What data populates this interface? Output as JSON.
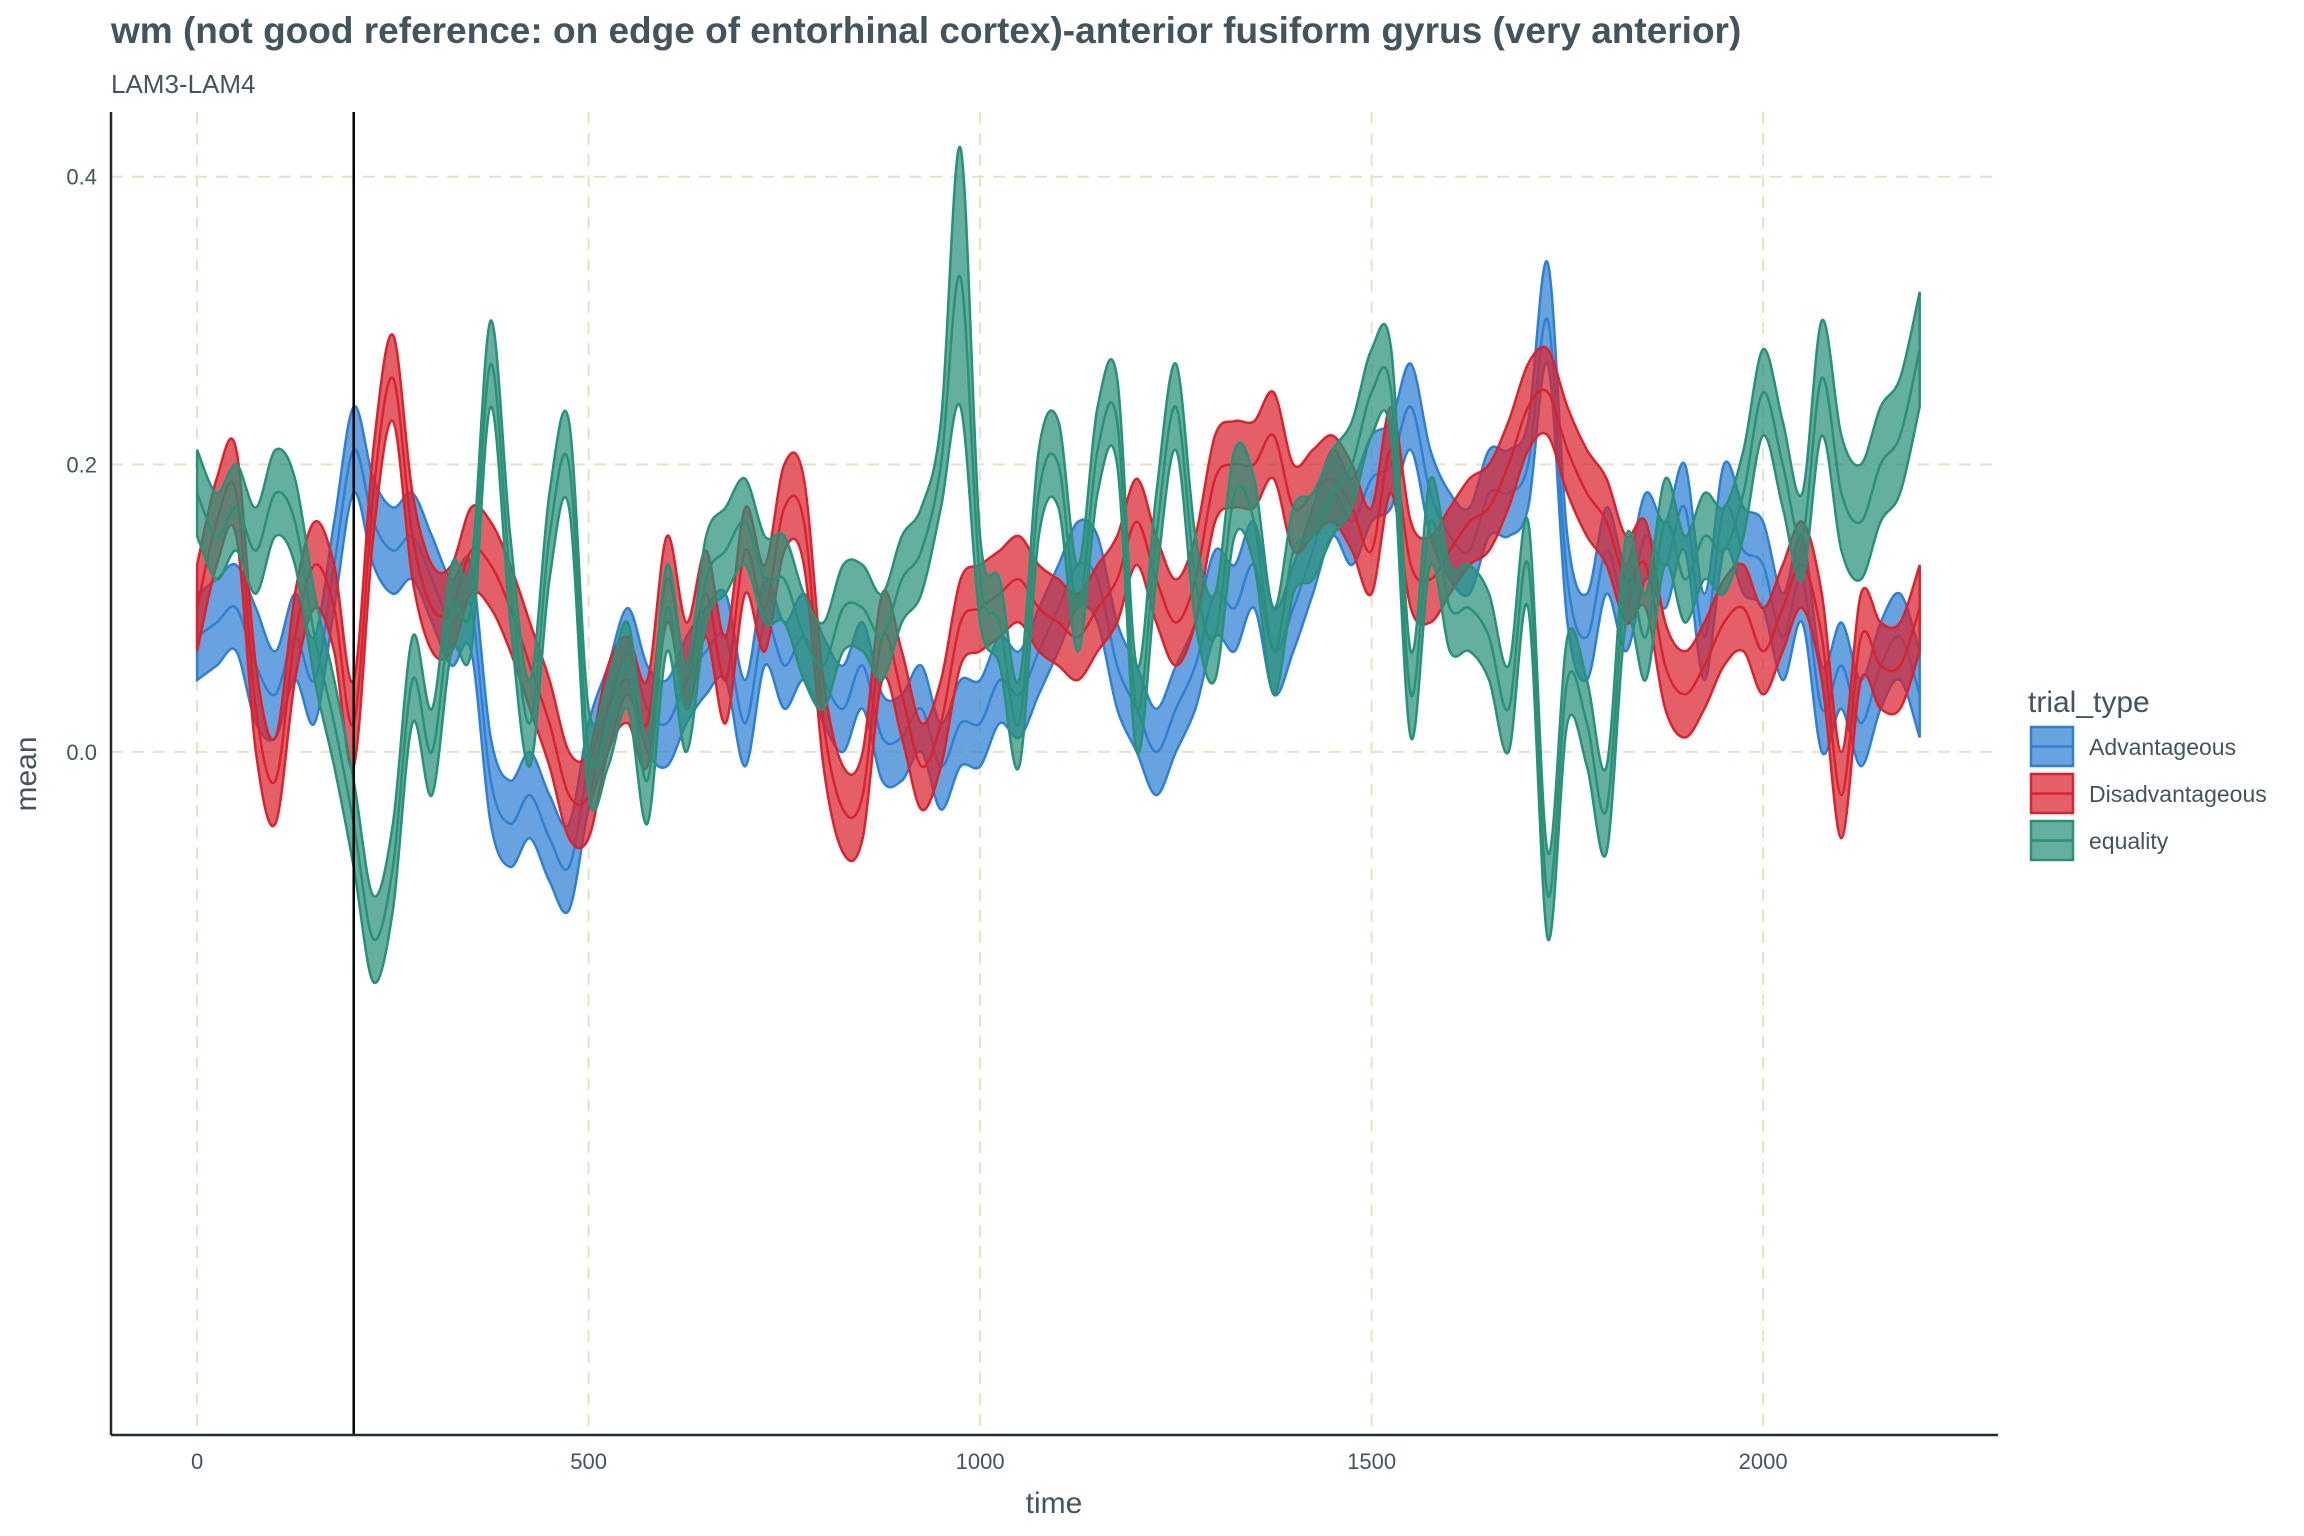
{
  "chart_data": {
    "type": "area",
    "title": "wm (not good reference: on edge of entorhinal cortex)-anterior fusiform gyrus (very anterior)",
    "subtitle": "LAM3-LAM4",
    "xlabel": "time",
    "ylabel": "mean",
    "xlim": [
      -110,
      2300
    ],
    "ylim": [
      -0.475,
      0.445
    ],
    "x_ticks": [
      0,
      500,
      1000,
      1500,
      2000
    ],
    "y_ticks": [
      0.0,
      0.2,
      0.4
    ],
    "x_tick_labels": [
      "0",
      "500",
      "1000",
      "1500",
      "2000"
    ],
    "y_tick_labels": [
      "0.0",
      "0.2",
      "0.4"
    ],
    "reference_line_x": 200,
    "grid": true,
    "legend": {
      "title": "trial_type",
      "position": "right"
    },
    "series": [
      {
        "name": "Advantageous",
        "color": "#2f7fd2",
        "x": [
          0,
          25,
          50,
          75,
          100,
          125,
          150,
          175,
          200,
          225,
          250,
          275,
          300,
          325,
          350,
          375,
          400,
          425,
          450,
          475,
          500,
          525,
          550,
          575,
          600,
          625,
          650,
          675,
          700,
          725,
          750,
          775,
          800,
          825,
          850,
          875,
          900,
          925,
          950,
          975,
          1000,
          1025,
          1050,
          1075,
          1100,
          1125,
          1150,
          1175,
          1200,
          1225,
          1250,
          1275,
          1300,
          1325,
          1350,
          1375,
          1400,
          1425,
          1450,
          1475,
          1500,
          1525,
          1550,
          1575,
          1600,
          1625,
          1650,
          1675,
          1700,
          1725,
          1750,
          1775,
          1800,
          1825,
          1850,
          1875,
          1900,
          1925,
          1950,
          1975,
          2000,
          2025,
          2050,
          2075,
          2100,
          2125,
          2150,
          2175,
          2200
        ],
        "mean": [
          0.08,
          0.09,
          0.1,
          0.06,
          0.04,
          0.08,
          0.05,
          0.13,
          0.21,
          0.16,
          0.14,
          0.15,
          0.12,
          0.09,
          0.1,
          -0.02,
          -0.05,
          -0.03,
          -0.06,
          -0.08,
          -0.01,
          0.03,
          0.07,
          0.03,
          0.02,
          0.05,
          0.07,
          0.08,
          0.02,
          0.09,
          0.06,
          0.08,
          0.05,
          0.03,
          0.06,
          0.01,
          0.01,
          0.03,
          -0.01,
          0.02,
          0.02,
          0.05,
          0.04,
          0.07,
          0.1,
          0.13,
          0.12,
          0.06,
          0.03,
          0.0,
          0.03,
          0.06,
          0.11,
          0.1,
          0.13,
          0.07,
          0.1,
          0.14,
          0.18,
          0.16,
          0.19,
          0.2,
          0.24,
          0.18,
          0.15,
          0.14,
          0.18,
          0.18,
          0.2,
          0.3,
          0.12,
          0.08,
          0.14,
          0.1,
          0.15,
          0.13,
          0.17,
          0.08,
          0.17,
          0.14,
          0.13,
          0.08,
          0.12,
          0.03,
          0.06,
          0.02,
          0.06,
          0.08,
          0.04
        ],
        "lower": [
          0.05,
          0.06,
          0.07,
          0.02,
          0.01,
          0.05,
          0.02,
          0.1,
          0.18,
          0.13,
          0.11,
          0.12,
          0.09,
          0.06,
          0.07,
          -0.05,
          -0.08,
          -0.06,
          -0.09,
          -0.11,
          -0.04,
          0.0,
          0.04,
          0.0,
          -0.01,
          0.02,
          0.04,
          0.05,
          -0.01,
          0.06,
          0.03,
          0.05,
          0.02,
          0.0,
          0.03,
          -0.02,
          -0.02,
          0.0,
          -0.04,
          -0.01,
          -0.01,
          0.02,
          0.01,
          0.04,
          0.07,
          0.1,
          0.09,
          0.03,
          0.0,
          -0.03,
          0.0,
          0.03,
          0.08,
          0.07,
          0.1,
          0.04,
          0.07,
          0.11,
          0.15,
          0.13,
          0.16,
          0.17,
          0.21,
          0.15,
          0.12,
          0.11,
          0.15,
          0.15,
          0.17,
          0.27,
          0.09,
          0.05,
          0.11,
          0.07,
          0.12,
          0.1,
          0.14,
          0.05,
          0.14,
          0.11,
          0.1,
          0.05,
          0.09,
          0.0,
          0.03,
          -0.01,
          0.03,
          0.05,
          0.01
        ],
        "upper": [
          0.11,
          0.12,
          0.13,
          0.1,
          0.07,
          0.11,
          0.08,
          0.16,
          0.24,
          0.19,
          0.17,
          0.18,
          0.15,
          0.12,
          0.13,
          0.01,
          -0.02,
          0.0,
          -0.03,
          -0.05,
          0.02,
          0.06,
          0.1,
          0.06,
          0.05,
          0.08,
          0.1,
          0.11,
          0.05,
          0.12,
          0.09,
          0.11,
          0.08,
          0.06,
          0.09,
          0.04,
          0.04,
          0.06,
          0.02,
          0.05,
          0.05,
          0.08,
          0.07,
          0.1,
          0.13,
          0.16,
          0.15,
          0.09,
          0.06,
          0.03,
          0.06,
          0.09,
          0.14,
          0.13,
          0.16,
          0.1,
          0.13,
          0.17,
          0.21,
          0.19,
          0.22,
          0.23,
          0.27,
          0.21,
          0.18,
          0.17,
          0.21,
          0.21,
          0.23,
          0.34,
          0.15,
          0.11,
          0.17,
          0.13,
          0.18,
          0.16,
          0.2,
          0.11,
          0.2,
          0.17,
          0.16,
          0.11,
          0.15,
          0.06,
          0.09,
          0.05,
          0.09,
          0.11,
          0.07
        ]
      },
      {
        "name": "Disadvantageous",
        "color": "#d9232e",
        "x": [
          0,
          25,
          50,
          75,
          100,
          125,
          150,
          175,
          200,
          225,
          250,
          275,
          300,
          325,
          350,
          375,
          400,
          425,
          450,
          475,
          500,
          525,
          550,
          575,
          600,
          625,
          650,
          675,
          700,
          725,
          750,
          775,
          800,
          825,
          850,
          875,
          900,
          925,
          950,
          975,
          1000,
          1025,
          1050,
          1075,
          1100,
          1125,
          1150,
          1175,
          1200,
          1225,
          1250,
          1275,
          1300,
          1325,
          1350,
          1375,
          1400,
          1425,
          1450,
          1475,
          1500,
          1525,
          1550,
          1575,
          1600,
          1625,
          1650,
          1675,
          1700,
          1725,
          1750,
          1775,
          1800,
          1825,
          1850,
          1875,
          1900,
          1925,
          1950,
          1975,
          2000,
          2025,
          2050,
          2075,
          2100,
          2125,
          2150,
          2175,
          2200
        ],
        "mean": [
          0.1,
          0.16,
          0.18,
          0.03,
          -0.02,
          0.08,
          0.13,
          0.1,
          0.02,
          0.18,
          0.26,
          0.15,
          0.1,
          0.1,
          0.14,
          0.13,
          0.1,
          0.06,
          0.02,
          -0.03,
          -0.03,
          0.03,
          0.05,
          0.02,
          0.12,
          0.06,
          0.11,
          0.05,
          0.14,
          0.1,
          0.17,
          0.16,
          0.02,
          -0.04,
          -0.03,
          0.08,
          0.04,
          -0.01,
          0.02,
          0.09,
          0.1,
          0.11,
          0.12,
          0.1,
          0.09,
          0.08,
          0.1,
          0.12,
          0.16,
          0.12,
          0.09,
          0.12,
          0.19,
          0.2,
          0.2,
          0.22,
          0.17,
          0.18,
          0.19,
          0.17,
          0.14,
          0.21,
          0.13,
          0.12,
          0.14,
          0.16,
          0.17,
          0.2,
          0.24,
          0.25,
          0.21,
          0.18,
          0.16,
          0.12,
          0.13,
          0.06,
          0.04,
          0.06,
          0.09,
          0.1,
          0.07,
          0.1,
          0.13,
          0.08,
          -0.03,
          0.08,
          0.06,
          0.06,
          0.1
        ],
        "lower": [
          0.07,
          0.13,
          0.15,
          0.0,
          -0.05,
          0.05,
          0.1,
          0.07,
          -0.01,
          0.15,
          0.23,
          0.12,
          0.07,
          0.07,
          0.11,
          0.1,
          0.07,
          0.03,
          -0.01,
          -0.06,
          -0.06,
          0.0,
          0.02,
          -0.01,
          0.09,
          0.03,
          0.08,
          0.02,
          0.11,
          0.07,
          0.14,
          0.13,
          -0.01,
          -0.07,
          -0.06,
          0.05,
          0.01,
          -0.04,
          -0.01,
          0.06,
          0.07,
          0.08,
          0.09,
          0.07,
          0.06,
          0.05,
          0.07,
          0.09,
          0.13,
          0.09,
          0.06,
          0.09,
          0.16,
          0.17,
          0.17,
          0.19,
          0.14,
          0.15,
          0.16,
          0.14,
          0.11,
          0.18,
          0.1,
          0.09,
          0.11,
          0.13,
          0.14,
          0.17,
          0.21,
          0.22,
          0.18,
          0.15,
          0.13,
          0.09,
          0.1,
          0.03,
          0.01,
          0.03,
          0.06,
          0.07,
          0.04,
          0.07,
          0.1,
          0.05,
          -0.06,
          0.05,
          0.03,
          0.03,
          0.07
        ],
        "upper": [
          0.13,
          0.19,
          0.21,
          0.06,
          0.01,
          0.11,
          0.16,
          0.13,
          0.05,
          0.21,
          0.29,
          0.18,
          0.13,
          0.13,
          0.17,
          0.16,
          0.13,
          0.09,
          0.05,
          0.0,
          0.0,
          0.06,
          0.08,
          0.05,
          0.15,
          0.09,
          0.14,
          0.08,
          0.17,
          0.13,
          0.2,
          0.19,
          0.05,
          -0.01,
          0.0,
          0.11,
          0.07,
          0.02,
          0.05,
          0.12,
          0.13,
          0.14,
          0.15,
          0.13,
          0.12,
          0.11,
          0.13,
          0.15,
          0.19,
          0.15,
          0.12,
          0.15,
          0.22,
          0.23,
          0.23,
          0.25,
          0.2,
          0.21,
          0.22,
          0.2,
          0.17,
          0.24,
          0.16,
          0.15,
          0.17,
          0.19,
          0.2,
          0.23,
          0.27,
          0.28,
          0.24,
          0.21,
          0.19,
          0.15,
          0.16,
          0.09,
          0.07,
          0.09,
          0.12,
          0.13,
          0.1,
          0.13,
          0.16,
          0.11,
          0.0,
          0.11,
          0.09,
          0.09,
          0.13
        ]
      },
      {
        "name": "equality",
        "color": "#2a9078",
        "x": [
          0,
          25,
          50,
          75,
          100,
          125,
          150,
          175,
          200,
          225,
          250,
          275,
          300,
          325,
          350,
          375,
          400,
          425,
          450,
          475,
          500,
          525,
          550,
          575,
          600,
          625,
          650,
          675,
          700,
          725,
          750,
          775,
          800,
          825,
          850,
          875,
          900,
          925,
          950,
          975,
          1000,
          1025,
          1050,
          1075,
          1100,
          1125,
          1150,
          1175,
          1200,
          1225,
          1250,
          1275,
          1300,
          1325,
          1350,
          1375,
          1400,
          1425,
          1450,
          1475,
          1500,
          1525,
          1550,
          1575,
          1600,
          1625,
          1650,
          1675,
          1700,
          1725,
          1750,
          1775,
          1800,
          1825,
          1850,
          1875,
          1900,
          1925,
          1950,
          1975,
          2000,
          2025,
          2050,
          2075,
          2100,
          2125,
          2150,
          2175,
          2200
        ],
        "mean": [
          0.18,
          0.15,
          0.17,
          0.14,
          0.18,
          0.16,
          0.08,
          0.02,
          -0.05,
          -0.13,
          -0.08,
          0.05,
          0.0,
          0.1,
          0.1,
          0.27,
          0.12,
          0.02,
          0.15,
          0.2,
          0.0,
          0.02,
          0.06,
          -0.02,
          0.1,
          0.03,
          0.12,
          0.14,
          0.16,
          0.12,
          0.12,
          0.08,
          0.06,
          0.1,
          0.1,
          0.08,
          0.12,
          0.14,
          0.2,
          0.33,
          0.12,
          0.09,
          0.02,
          0.18,
          0.2,
          0.1,
          0.21,
          0.23,
          0.03,
          0.15,
          0.24,
          0.12,
          0.08,
          0.18,
          0.16,
          0.07,
          0.14,
          0.15,
          0.18,
          0.2,
          0.25,
          0.25,
          0.04,
          0.16,
          0.1,
          0.1,
          0.08,
          0.03,
          0.13,
          -0.1,
          0.05,
          0.02,
          -0.04,
          0.12,
          0.08,
          0.16,
          0.12,
          0.15,
          0.14,
          0.18,
          0.25,
          0.2,
          0.15,
          0.26,
          0.18,
          0.16,
          0.2,
          0.22,
          0.28
        ],
        "lower": [
          0.15,
          0.12,
          0.14,
          0.11,
          0.15,
          0.13,
          0.05,
          -0.01,
          -0.08,
          -0.16,
          -0.11,
          0.02,
          -0.03,
          0.07,
          0.07,
          0.24,
          0.09,
          -0.01,
          0.12,
          0.17,
          -0.03,
          -0.01,
          0.03,
          -0.05,
          0.07,
          0.0,
          0.09,
          0.11,
          0.13,
          0.09,
          0.09,
          0.05,
          0.03,
          0.07,
          0.07,
          0.05,
          0.09,
          0.11,
          0.17,
          0.24,
          0.09,
          0.06,
          -0.01,
          0.15,
          0.17,
          0.07,
          0.18,
          0.2,
          0.0,
          0.12,
          0.21,
          0.09,
          0.05,
          0.15,
          0.13,
          0.04,
          0.11,
          0.12,
          0.15,
          0.17,
          0.22,
          0.22,
          0.01,
          0.13,
          0.07,
          0.07,
          0.05,
          0.0,
          0.1,
          -0.13,
          0.02,
          -0.01,
          -0.07,
          0.09,
          0.05,
          0.13,
          0.09,
          0.12,
          0.11,
          0.15,
          0.22,
          0.17,
          0.12,
          0.22,
          0.14,
          0.12,
          0.16,
          0.18,
          0.24
        ],
        "upper": [
          0.21,
          0.18,
          0.2,
          0.17,
          0.21,
          0.19,
          0.11,
          0.05,
          -0.02,
          -0.1,
          -0.05,
          0.08,
          0.03,
          0.13,
          0.13,
          0.3,
          0.15,
          0.05,
          0.18,
          0.23,
          0.03,
          0.05,
          0.09,
          0.01,
          0.13,
          0.06,
          0.15,
          0.17,
          0.19,
          0.15,
          0.15,
          0.11,
          0.09,
          0.13,
          0.13,
          0.11,
          0.15,
          0.17,
          0.23,
          0.42,
          0.15,
          0.12,
          0.05,
          0.21,
          0.23,
          0.13,
          0.24,
          0.26,
          0.06,
          0.18,
          0.27,
          0.15,
          0.11,
          0.21,
          0.19,
          0.1,
          0.17,
          0.18,
          0.21,
          0.23,
          0.28,
          0.28,
          0.07,
          0.19,
          0.13,
          0.13,
          0.11,
          0.06,
          0.16,
          -0.07,
          0.08,
          0.05,
          -0.01,
          0.15,
          0.11,
          0.19,
          0.15,
          0.18,
          0.17,
          0.21,
          0.28,
          0.23,
          0.18,
          0.3,
          0.22,
          0.2,
          0.24,
          0.26,
          0.32
        ]
      }
    ]
  }
}
